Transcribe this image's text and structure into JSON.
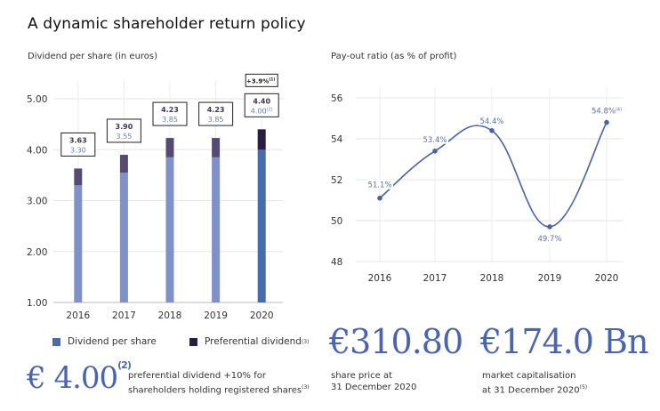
{
  "page": {
    "title": "A dynamic shareholder return policy"
  },
  "chart_data": [
    {
      "type": "bar",
      "stacked": true,
      "title": "Dividend per share (in euros)",
      "categories": [
        "2016",
        "2017",
        "2018",
        "2019",
        "2020"
      ],
      "series": [
        {
          "name": "Dividend per share",
          "values": [
            3.3,
            3.55,
            3.85,
            3.85,
            4.0
          ]
        },
        {
          "name": "Preferential dividend",
          "name_sup": "(3)",
          "values": [
            0.33,
            0.35,
            0.38,
            0.38,
            0.4
          ]
        }
      ],
      "totals": [
        3.63,
        3.9,
        4.23,
        4.23,
        4.4
      ],
      "labels": [
        {
          "total": "3.63",
          "base": "3.30",
          "base_sup": ""
        },
        {
          "total": "3.90",
          "base": "3.55",
          "base_sup": ""
        },
        {
          "total": "4.23",
          "base": "3.85",
          "base_sup": ""
        },
        {
          "total": "4.23",
          "base": "3.85",
          "base_sup": ""
        },
        {
          "total": "4.40",
          "base": "4.00",
          "base_sup": "(2)"
        }
      ],
      "annotation": {
        "category": "2020",
        "text": "+3.9%",
        "sup": "(1)"
      },
      "yticks": [
        "1.00",
        "2.00",
        "3.00",
        "4.00",
        "5.00"
      ],
      "ylim": [
        1,
        5
      ],
      "grid": true,
      "legend": "bottom",
      "colors": {
        "base": "#8090c8",
        "base_highlight": "#4a6ab0",
        "pref": "#574a72",
        "pref_highlight": "#2b1d3f"
      }
    },
    {
      "type": "line",
      "title": "Pay-out ratio (as % of profit)",
      "x": [
        "2016",
        "2017",
        "2018",
        "2019",
        "2020"
      ],
      "series": [
        {
          "name": "Pay-out ratio",
          "values": [
            51.1,
            53.4,
            54.4,
            49.7,
            54.8
          ]
        }
      ],
      "point_labels": [
        "51.1%",
        "53.4%",
        "54.4%",
        "49.7%",
        "54.8%"
      ],
      "point_label_sups": [
        "",
        "",
        "",
        "",
        "(4)"
      ],
      "yticks": [
        "48",
        "50",
        "52",
        "54",
        "56"
      ],
      "ylim": [
        48,
        56
      ],
      "grid": true,
      "color": "#4a62a8"
    }
  ],
  "legend": {
    "dividend": "Dividend per share",
    "preferential": "Preferential dividend",
    "preferential_sup": "(3)"
  },
  "kpis": {
    "dividend": {
      "value": "€ 4.00",
      "sup": "(2)",
      "line1": "preferential dividend +10% for",
      "line2": "shareholders holding registered shares",
      "line2_sup": "(3)"
    },
    "share_price": {
      "value": "€310.80",
      "line1": "share price at",
      "line2": "31 December 2020"
    },
    "market_cap": {
      "value": "€174.0 Bn",
      "line1": "market capitalisation",
      "line2": "at 31 December 2020",
      "line2_sup": "(5)"
    }
  }
}
